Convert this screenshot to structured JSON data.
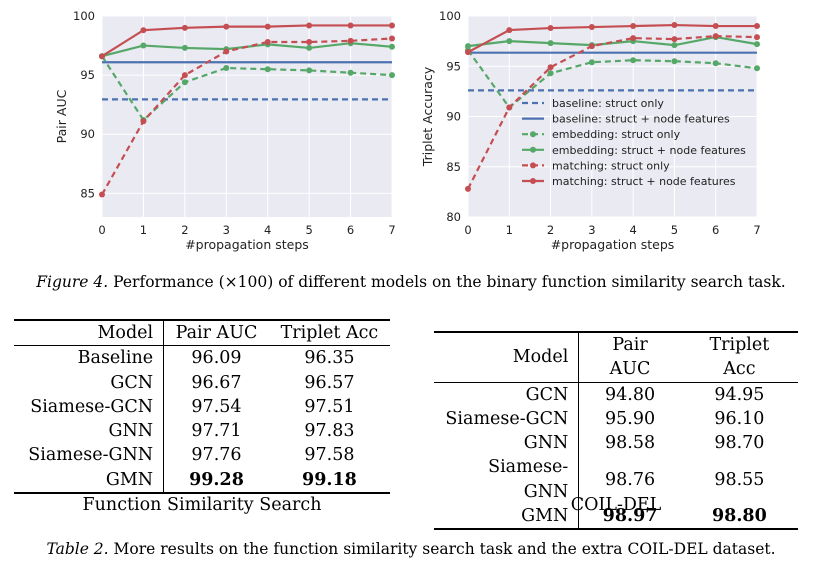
{
  "chart_data": [
    {
      "type": "line",
      "title": "",
      "xlabel": "#propagation steps",
      "ylabel": "Pair AUC",
      "x": [
        0,
        1,
        2,
        3,
        4,
        5,
        6,
        7
      ],
      "xticks": [
        "0",
        "1",
        "2",
        "3",
        "4",
        "5",
        "6",
        "7"
      ],
      "yticks": [
        "85",
        "90",
        "95",
        "100"
      ],
      "xlim": [
        0,
        7
      ],
      "ylim": [
        83,
        100
      ],
      "grid": true,
      "legend": "none",
      "series": [
        {
          "name": "baseline: struct only",
          "style": "dashed",
          "marker": false,
          "color": "#4c72b0",
          "values": [
            92.95,
            92.95,
            92.95,
            92.95,
            92.95,
            92.95,
            92.95,
            92.95
          ]
        },
        {
          "name": "baseline: struct + node features",
          "style": "solid",
          "marker": false,
          "color": "#4c72b0",
          "values": [
            96.09,
            96.09,
            96.09,
            96.09,
            96.09,
            96.09,
            96.09,
            96.09
          ]
        },
        {
          "name": "embedding: struct only",
          "style": "dashed",
          "marker": true,
          "color": "#55a868",
          "values": [
            96.6,
            91.2,
            94.4,
            95.6,
            95.5,
            95.4,
            95.2,
            95.0
          ]
        },
        {
          "name": "embedding: struct + node features",
          "style": "solid",
          "marker": true,
          "color": "#55a868",
          "values": [
            96.6,
            97.5,
            97.3,
            97.2,
            97.6,
            97.3,
            97.7,
            97.4
          ]
        },
        {
          "name": "matching: struct only",
          "style": "dashed",
          "marker": true,
          "color": "#c44e52",
          "values": [
            84.9,
            91.1,
            95.0,
            97.0,
            97.8,
            97.8,
            97.9,
            98.1
          ]
        },
        {
          "name": "matching: struct + node features",
          "style": "solid",
          "marker": true,
          "color": "#c44e52",
          "values": [
            96.6,
            98.8,
            99.0,
            99.1,
            99.1,
            99.2,
            99.2,
            99.2
          ]
        }
      ]
    },
    {
      "type": "line",
      "title": "",
      "xlabel": "#propagation steps",
      "ylabel": "Triplet Accuracy",
      "x": [
        0,
        1,
        2,
        3,
        4,
        5,
        6,
        7
      ],
      "xticks": [
        "0",
        "1",
        "2",
        "3",
        "4",
        "5",
        "6",
        "7"
      ],
      "yticks": [
        "80",
        "85",
        "90",
        "95",
        "100"
      ],
      "xlim": [
        0,
        7
      ],
      "ylim": [
        80,
        100
      ],
      "grid": true,
      "legend": "lower-right",
      "series": [
        {
          "name": "baseline: struct only",
          "style": "dashed",
          "marker": false,
          "color": "#4c72b0",
          "values": [
            92.6,
            92.6,
            92.6,
            92.6,
            92.6,
            92.6,
            92.6,
            92.6
          ]
        },
        {
          "name": "baseline: struct + node features",
          "style": "solid",
          "marker": false,
          "color": "#4c72b0",
          "values": [
            96.35,
            96.35,
            96.35,
            96.35,
            96.35,
            96.35,
            96.35,
            96.35
          ]
        },
        {
          "name": "embedding: struct only",
          "style": "dashed",
          "marker": true,
          "color": "#55a868",
          "values": [
            96.6,
            90.9,
            94.3,
            95.4,
            95.6,
            95.5,
            95.3,
            94.8
          ]
        },
        {
          "name": "embedding: struct + node features",
          "style": "solid",
          "marker": true,
          "color": "#55a868",
          "values": [
            97.0,
            97.5,
            97.3,
            97.1,
            97.5,
            97.1,
            97.9,
            97.2
          ]
        },
        {
          "name": "matching: struct only",
          "style": "dashed",
          "marker": true,
          "color": "#c44e52",
          "values": [
            82.8,
            90.9,
            94.9,
            97.0,
            97.8,
            97.7,
            98.0,
            97.9
          ]
        },
        {
          "name": "matching: struct + node features",
          "style": "solid",
          "marker": true,
          "color": "#c44e52",
          "values": [
            96.4,
            98.6,
            98.8,
            98.9,
            99.0,
            99.1,
            99.0,
            99.0
          ]
        }
      ]
    }
  ],
  "figure_caption": {
    "lead": "Figure 4.",
    "text": "Performance (×100) of different models on the binary function similarity search task."
  },
  "table_left": {
    "headers": [
      "Model",
      "Pair AUC",
      "Triplet Acc"
    ],
    "rows": [
      {
        "model": "Baseline",
        "auc": "96.09",
        "acc": "96.35"
      },
      {
        "model": "GCN",
        "auc": "96.67",
        "acc": "96.57"
      },
      {
        "model": "Siamese-GCN",
        "auc": "97.54",
        "acc": "97.51"
      },
      {
        "model": "GNN",
        "auc": "97.71",
        "acc": "97.83"
      },
      {
        "model": "Siamese-GNN",
        "auc": "97.76",
        "acc": "97.58"
      },
      {
        "model": "GMN",
        "auc": "99.28",
        "acc": "99.18"
      }
    ],
    "title": "Function Similarity Search"
  },
  "table_right": {
    "headers": [
      "Model",
      "Pair AUC",
      "Triplet Acc"
    ],
    "rows": [
      {
        "model": "GCN",
        "auc": "94.80",
        "acc": "94.95"
      },
      {
        "model": "Siamese-GCN",
        "auc": "95.90",
        "acc": "96.10"
      },
      {
        "model": "GNN",
        "auc": "98.58",
        "acc": "98.70"
      },
      {
        "model": "Siamese-GNN",
        "auc": "98.76",
        "acc": "98.55"
      },
      {
        "model": "GMN",
        "auc": "98.97",
        "acc": "98.80"
      }
    ],
    "title": "COIL-DEL"
  },
  "table_caption": {
    "lead": "Table 2.",
    "text": "More results on the function similarity search task and the extra COIL-DEL dataset."
  }
}
